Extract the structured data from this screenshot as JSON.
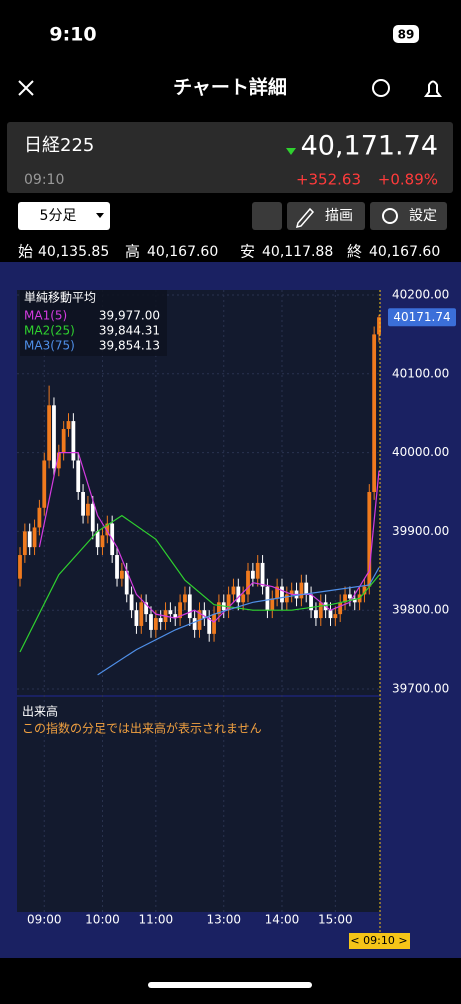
{
  "status_bar": {
    "time": "9:10",
    "battery": "89"
  },
  "header": {
    "title": "チャート詳細"
  },
  "quote": {
    "name": "日経225",
    "time": "09:10",
    "price": "40,171.74",
    "change": "+352.63",
    "change_pct": "+0.89%"
  },
  "controls": {
    "interval": "5分足",
    "draw": "描画",
    "settings": "設定"
  },
  "ohlc": [
    {
      "label": "始",
      "value": "40,135.85"
    },
    {
      "label": "高",
      "value": "40,167.60"
    },
    {
      "label": "安",
      "value": "40,117.88"
    },
    {
      "label": "終",
      "value": "40,167.60"
    }
  ],
  "chart_data": {
    "type": "candlestick",
    "title": "単純移動平均",
    "x": [
      0,
      1,
      2,
      3,
      4,
      5,
      6,
      7,
      8,
      9,
      10,
      11,
      12,
      13,
      14,
      15,
      16,
      17,
      18,
      19,
      20,
      21,
      22,
      23,
      24,
      25,
      26,
      27,
      28,
      29,
      30,
      31,
      32,
      33,
      34,
      35,
      36,
      37,
      38,
      39,
      40,
      41,
      42,
      43,
      44,
      45,
      46,
      47,
      48,
      49,
      50,
      51,
      52,
      53,
      54,
      55,
      56,
      57,
      58,
      59,
      60,
      61,
      62,
      63,
      64,
      65,
      66,
      67,
      68,
      69,
      70,
      71,
      72,
      73,
      74
    ],
    "open": [
      39840,
      39870,
      39900,
      39880,
      39905,
      39930,
      39990,
      40060,
      39980,
      40000,
      40030,
      40040,
      39990,
      39950,
      39920,
      39935,
      39900,
      39880,
      39895,
      39910,
      39870,
      39840,
      39850,
      39820,
      39800,
      39780,
      39810,
      39795,
      39775,
      39790,
      39785,
      39800,
      39795,
      39790,
      39810,
      39820,
      39790,
      39775,
      39800,
      39790,
      39770,
      39795,
      39810,
      39800,
      39820,
      39830,
      39810,
      39820,
      39850,
      39840,
      39860,
      39830,
      39800,
      39815,
      39830,
      39810,
      39820,
      39825,
      39815,
      39835,
      39820,
      39800,
      39790,
      39810,
      39800,
      39790,
      39795,
      39810,
      39820,
      39815,
      39810,
      39820,
      39830,
      39950,
      40150
    ],
    "high": [
      39880,
      39910,
      39910,
      39915,
      39940,
      40000,
      40085,
      40070,
      40010,
      40040,
      40050,
      40050,
      40000,
      39960,
      39945,
      39945,
      39910,
      39905,
      39920,
      39920,
      39880,
      39860,
      39860,
      39830,
      39810,
      39820,
      39820,
      39805,
      39800,
      39800,
      39810,
      39810,
      39805,
      39820,
      39830,
      39830,
      39800,
      39810,
      39810,
      39800,
      39805,
      39820,
      39820,
      39830,
      39840,
      39840,
      39830,
      39860,
      39860,
      39870,
      39870,
      39840,
      39825,
      39840,
      39840,
      39830,
      39835,
      39835,
      39845,
      39845,
      39830,
      39810,
      39820,
      39820,
      39810,
      39805,
      39820,
      39830,
      39830,
      39825,
      39830,
      39840,
      39960,
      40160,
      40175
    ],
    "low": [
      39830,
      39860,
      39870,
      39870,
      39895,
      39920,
      39980,
      39970,
      39970,
      39990,
      40020,
      39980,
      39940,
      39910,
      39910,
      39890,
      39870,
      39870,
      39885,
      39860,
      39830,
      39830,
      39810,
      39790,
      39770,
      39770,
      39785,
      39765,
      39765,
      39775,
      39775,
      39785,
      39780,
      39780,
      39800,
      39780,
      39765,
      39765,
      39780,
      39760,
      39760,
      39785,
      39790,
      39790,
      39810,
      39800,
      39800,
      39810,
      39830,
      39830,
      39820,
      39790,
      39790,
      39805,
      39800,
      39800,
      39810,
      39805,
      39805,
      39810,
      39790,
      39780,
      39780,
      39790,
      39780,
      39780,
      39785,
      39800,
      39805,
      39800,
      39800,
      39810,
      39820,
      39940,
      40140
    ],
    "close": [
      39870,
      39900,
      39880,
      39905,
      39930,
      39990,
      40060,
      39980,
      40000,
      40030,
      40040,
      39990,
      39950,
      39920,
      39935,
      39900,
      39880,
      39895,
      39910,
      39870,
      39840,
      39850,
      39820,
      39800,
      39780,
      39810,
      39795,
      39775,
      39790,
      39785,
      39800,
      39795,
      39790,
      39810,
      39820,
      39790,
      39775,
      39800,
      39790,
      39770,
      39795,
      39810,
      39800,
      39820,
      39830,
      39810,
      39820,
      39850,
      39840,
      39860,
      39830,
      39800,
      39815,
      39830,
      39810,
      39820,
      39825,
      39815,
      39835,
      39820,
      39800,
      39790,
      39810,
      39800,
      39790,
      39795,
      39810,
      39820,
      39815,
      39810,
      39820,
      39830,
      39950,
      40150,
      40171.74
    ],
    "up_color": "#f07a1e",
    "down_color": "#ffffff",
    "series": [
      {
        "name": "MA1(5)",
        "color": "#d43be0",
        "legend_label": "39,977.00",
        "x": [
          4,
          8,
          12,
          16,
          20,
          24,
          28,
          32,
          36,
          40,
          44,
          48,
          52,
          56,
          60,
          64,
          68,
          72,
          74
        ],
        "values": [
          39880,
          40000,
          40000,
          39920,
          39880,
          39820,
          39795,
          39790,
          39800,
          39785,
          39810,
          39835,
          39830,
          39820,
          39820,
          39800,
          39810,
          39850,
          39977
        ]
      },
      {
        "name": "MA2(25)",
        "color": "#2fd12f",
        "legend_label": "39,844.31",
        "x": [
          0,
          8,
          16,
          21,
          28,
          34,
          40,
          48,
          56,
          64,
          70,
          74
        ],
        "values": [
          39747,
          39845,
          39900,
          39920,
          39890,
          39838,
          39807,
          39800,
          39800,
          39807,
          39815,
          39844.31
        ]
      },
      {
        "name": "MA3(75)",
        "color": "#4f8fe8",
        "legend_label": "39,854.13",
        "x": [
          16,
          24,
          32,
          40,
          48,
          56,
          64,
          72,
          74
        ],
        "values": [
          39718,
          39750,
          39775,
          39795,
          39810,
          39818,
          39825,
          39832,
          39854.13
        ]
      }
    ],
    "xlim": [
      0,
      74
    ],
    "ylim": [
      39700,
      40200
    ],
    "yticks": [
      {
        "value": 40200,
        "label": "40200.00"
      },
      {
        "value": 40100,
        "label": "40100.00"
      },
      {
        "value": 40000,
        "label": "40000.00"
      },
      {
        "value": 39900,
        "label": "39900.00"
      },
      {
        "value": 39800,
        "label": "39800.00"
      },
      {
        "value": 39700,
        "label": "39700.00"
      }
    ],
    "xticks": [
      {
        "value": 5,
        "label": "09:00"
      },
      {
        "value": 17,
        "label": "10:00"
      },
      {
        "value": 28,
        "label": "11:00"
      },
      {
        "value": 42,
        "label": "13:00"
      },
      {
        "value": 54,
        "label": "14:00"
      },
      {
        "value": 65,
        "label": "15:00"
      }
    ],
    "last_price": {
      "value": 40171.74,
      "label": "40171.74"
    },
    "cursor_label": "< 09:10 >"
  },
  "volume_panel": {
    "title": "出来高",
    "note": "この指数の分足では出来高が表示されません"
  }
}
